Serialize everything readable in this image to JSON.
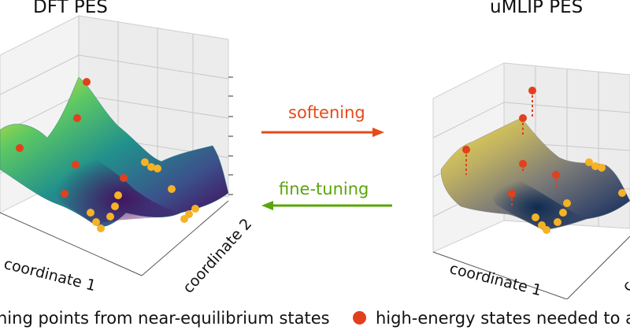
{
  "titles": {
    "left": "DFT PES",
    "right": "uMLIP PES"
  },
  "arrows": {
    "top": {
      "label": "softening",
      "color": "#e64a19"
    },
    "bottom": {
      "label": "fine-tuning",
      "color": "#5aa50a"
    }
  },
  "axes": {
    "left_x": "coordinate 1",
    "left_y": "coordinate 2",
    "right_x": "coordinate 1",
    "right_y": "c"
  },
  "legend": {
    "items": [
      {
        "label": "ning points from near-equilibrium states",
        "color": "#f5b225"
      },
      {
        "label": "high-energy states needed to au",
        "color": "#e2401c"
      }
    ]
  },
  "colors": {
    "viridis": [
      "#440154",
      "#3b528b",
      "#21908c",
      "#5dc863",
      "#fde725"
    ],
    "cividis": [
      "#00204c",
      "#3b4a6b",
      "#7c7b78",
      "#bcae63",
      "#f4e34f"
    ],
    "equilibrium_point": "#f5b225",
    "high_energy_point": "#e2401c"
  }
}
